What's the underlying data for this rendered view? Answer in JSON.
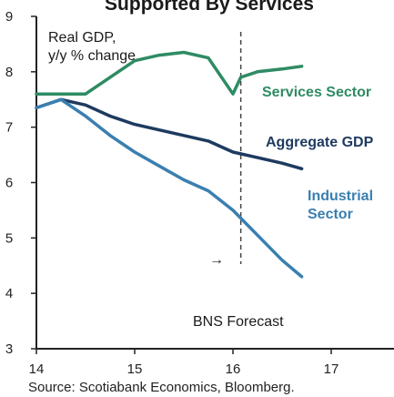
{
  "chart_data": {
    "type": "line",
    "title": "Supported By Services",
    "y_unit_label": "Real GDP,\ny/y % change",
    "ylim": [
      3,
      9
    ],
    "yticks": [
      3,
      4,
      5,
      6,
      7,
      8,
      9
    ],
    "xlim": [
      14,
      16.7
    ],
    "xticks": [
      {
        "value": 14,
        "label": "14"
      },
      {
        "value": 15,
        "label": "15"
      },
      {
        "value": 16,
        "label": "16"
      },
      {
        "value": 17,
        "label": "17"
      }
    ],
    "grid": false,
    "forecast_divider_x": 16.08,
    "forecast_label": "BNS Forecast",
    "forecast_arrow": "→",
    "source": "Source: Scotiabank Economics, Bloomberg.",
    "series": [
      {
        "name": "Services Sector",
        "color": "#2e8b63",
        "x": [
          14.0,
          14.25,
          14.5,
          14.75,
          15.0,
          15.25,
          15.5,
          15.75,
          16.0,
          16.08,
          16.25,
          16.5,
          16.7
        ],
        "y": [
          7.6,
          7.6,
          7.6,
          7.9,
          8.2,
          8.3,
          8.35,
          8.25,
          7.6,
          7.9,
          8.0,
          8.05,
          8.1
        ]
      },
      {
        "name": "Aggregate GDP",
        "color": "#1e3a5f",
        "x": [
          14.0,
          14.25,
          14.5,
          14.75,
          15.0,
          15.25,
          15.5,
          15.75,
          16.0,
          16.25,
          16.5,
          16.7
        ],
        "y": [
          7.35,
          7.5,
          7.4,
          7.2,
          7.05,
          6.95,
          6.85,
          6.75,
          6.55,
          6.45,
          6.35,
          6.25
        ]
      },
      {
        "name": "Industrial\nSector",
        "color": "#3a7fb0",
        "x": [
          14.0,
          14.25,
          14.5,
          14.75,
          15.0,
          15.25,
          15.5,
          15.75,
          16.0,
          16.25,
          16.5,
          16.7
        ],
        "y": [
          7.35,
          7.5,
          7.2,
          6.85,
          6.55,
          6.3,
          6.05,
          5.85,
          5.5,
          5.05,
          4.6,
          4.3
        ]
      }
    ]
  }
}
